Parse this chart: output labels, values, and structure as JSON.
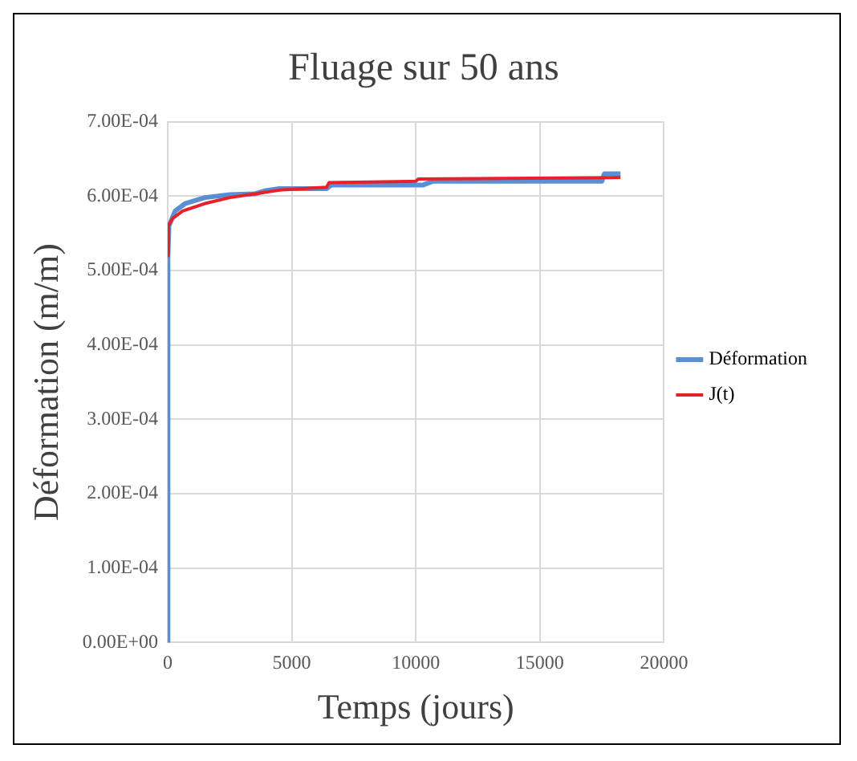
{
  "chart_data": {
    "type": "line",
    "title": "Fluage sur 50 ans",
    "xlabel": "Temps (jours)",
    "ylabel": "Déformation (m/m)",
    "xlim": [
      0,
      20000
    ],
    "xticks": [
      0,
      5000,
      10000,
      15000,
      20000
    ],
    "ylim": [
      0,
      0.0007
    ],
    "yticks": [
      {
        "value": 0,
        "label": "0.00E+00"
      },
      {
        "value": 0.0001,
        "label": "1.00E-04"
      },
      {
        "value": 0.0002,
        "label": "2.00E-04"
      },
      {
        "value": 0.0003,
        "label": "3.00E-04"
      },
      {
        "value": 0.0004,
        "label": "4.00E-04"
      },
      {
        "value": 0.0005,
        "label": "5.00E-04"
      },
      {
        "value": 0.0006,
        "label": "6.00E-04"
      },
      {
        "value": 0.0007,
        "label": "7.00E-04"
      }
    ],
    "grid": true,
    "legend": "right",
    "marker": "none",
    "line_style": "solid",
    "series": [
      {
        "name": "Déformation",
        "color": "#5b8fd4",
        "x": [
          0,
          10,
          50,
          300,
          700,
          1500,
          2500,
          3500,
          3900,
          4500,
          6400,
          6600,
          10300,
          10700,
          17500,
          17600,
          18250
        ],
        "values": [
          0,
          0.00052,
          0.00056,
          0.00058,
          0.00059,
          0.000598,
          0.000602,
          0.000603,
          0.000607,
          0.00061,
          0.00061,
          0.000615,
          0.000615,
          0.00062,
          0.00062,
          0.00063,
          0.00063
        ]
      },
      {
        "name": "J(t)",
        "color": "#e8202a",
        "x": [
          0,
          30,
          200,
          600,
          1500,
          2500,
          3500,
          4500,
          6400,
          6500,
          10000,
          10100,
          18250
        ],
        "values": [
          0.00052,
          0.00056,
          0.00057,
          0.00058,
          0.00059,
          0.000598,
          0.000603,
          0.000608,
          0.000612,
          0.000618,
          0.00062,
          0.000623,
          0.000625
        ]
      }
    ]
  }
}
